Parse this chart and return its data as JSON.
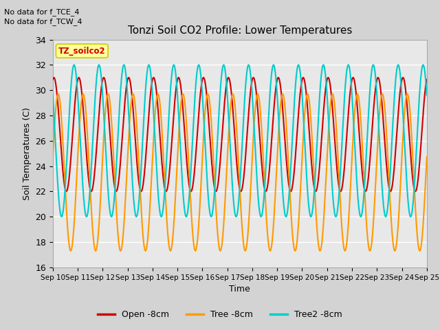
{
  "title": "Tonzi Soil CO2 Profile: Lower Temperatures",
  "xlabel": "Time",
  "ylabel": "Soil Temperatures (C)",
  "ylim": [
    16,
    34
  ],
  "yticks": [
    16,
    18,
    20,
    22,
    24,
    26,
    28,
    30,
    32,
    34
  ],
  "n_days": 15,
  "xtick_labels": [
    "Sep 10",
    "Sep 11",
    "Sep 12",
    "Sep 13",
    "Sep 14",
    "Sep 15",
    "Sep 16",
    "Sep 17",
    "Sep 18",
    "Sep 19",
    "Sep 20",
    "Sep 21",
    "Sep 22",
    "Sep 23",
    "Sep 24",
    "Sep 25"
  ],
  "annotation_line1": "No data for f_TCE_4",
  "annotation_line2": "No data for f_TCW_4",
  "legend_box_label": "TZ_soilco2",
  "color_open": "#cc0000",
  "color_tree": "#ff9900",
  "color_tree2": "#00cccc",
  "color_bg_fig": "#d3d3d3",
  "color_bg_ax": "#e8e8e8",
  "color_grid": "#ffffff",
  "legend_label_open": "Open -8cm",
  "legend_label_tree": "Tree -8cm",
  "legend_label_tree2": "Tree2 -8cm",
  "line_width": 1.5,
  "open_base": 26.5,
  "open_amp": 4.5,
  "open_phase": 1.3,
  "tree_base": 23.5,
  "tree_amp": 6.2,
  "tree_phase": 0.2,
  "tree2_base": 26.0,
  "tree2_amp": 6.0,
  "tree2_phase": 2.5
}
